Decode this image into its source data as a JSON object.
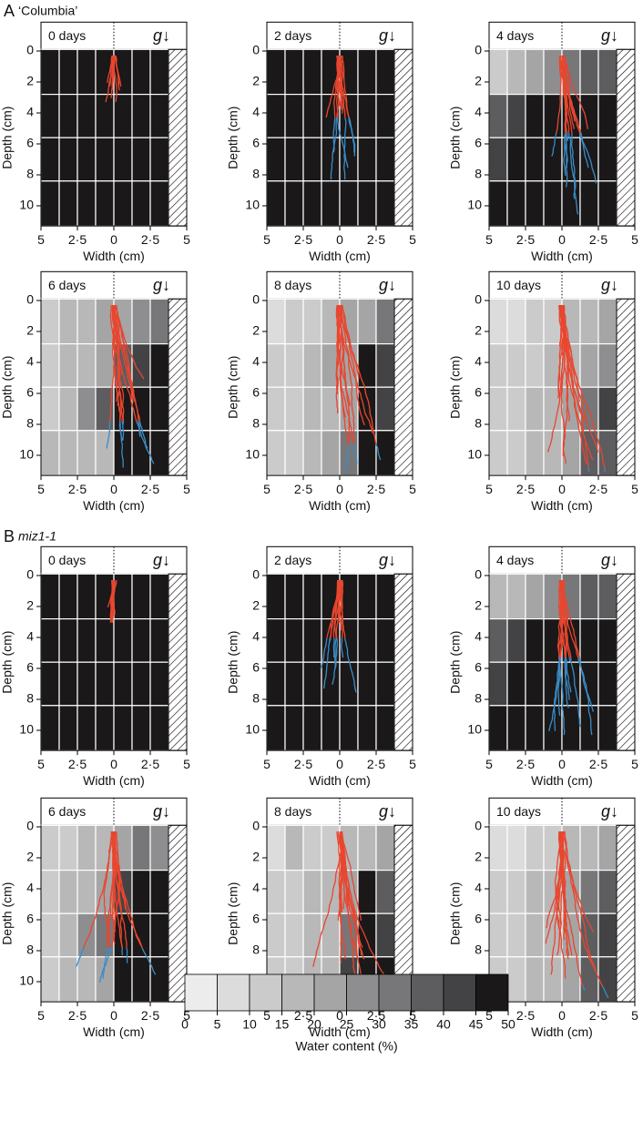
{
  "figure": {
    "panel_labels": [
      {
        "letter": "A",
        "genotype": "‘Columbia’"
      },
      {
        "letter": "B",
        "genotype": "miz1-1"
      }
    ]
  },
  "shared_axes": {
    "x_label": "Width (cm)",
    "y_label": "Depth (cm)",
    "gravity_label": "g↓",
    "xlim": [
      -5,
      5
    ],
    "ylim": [
      -0.1,
      11.3
    ],
    "xticks": [
      {
        "value": -5,
        "label": "5"
      },
      {
        "value": -2.5,
        "label": "2·5"
      },
      0,
      {
        "value": 2.5,
        "label": "2·5"
      },
      5
    ],
    "yticks": [
      0,
      2,
      4,
      6,
      8,
      10
    ],
    "col_edges": [
      -5,
      -3.75,
      -2.5,
      -1.25,
      0,
      1.25,
      2.5,
      3.75
    ],
    "row_edges": [
      -0.1,
      2.8,
      5.6,
      8.4,
      11.3
    ]
  },
  "colorbar": {
    "label": "Water content (%)",
    "ticks": [
      0,
      5,
      10,
      15,
      20,
      25,
      30,
      35,
      40,
      45,
      50
    ],
    "colors": [
      "#ececec",
      "#dcdcdc",
      "#cbcbcb",
      "#b8b8b9",
      "#a5a5a6",
      "#8e8e90",
      "#77777a",
      "#5d5d60",
      "#434345",
      "#1a1818"
    ]
  },
  "chart_data": [
    {
      "type": "heatmap",
      "title": "0 days",
      "values": [
        [
          48,
          48,
          48,
          48,
          48,
          48,
          48
        ],
        [
          48,
          48,
          48,
          48,
          48,
          48,
          48
        ],
        [
          48,
          48,
          48,
          48,
          48,
          48,
          48
        ],
        [
          48,
          48,
          48,
          48,
          48,
          48,
          48
        ]
      ]
    },
    {
      "type": "heatmap",
      "title": "2 days",
      "values": [
        [
          48,
          48,
          48,
          48,
          48,
          48,
          48
        ],
        [
          48,
          48,
          48,
          48,
          48,
          48,
          48
        ],
        [
          48,
          48,
          48,
          48,
          48,
          48,
          48
        ],
        [
          48,
          48,
          48,
          48,
          48,
          48,
          48
        ]
      ]
    },
    {
      "type": "heatmap",
      "title": "4 days",
      "values": [
        [
          12,
          17,
          22,
          27,
          33,
          37,
          38
        ],
        [
          37,
          43,
          48,
          48,
          48,
          48,
          48
        ],
        [
          42,
          48,
          48,
          48,
          48,
          48,
          48
        ],
        [
          48,
          48,
          48,
          48,
          48,
          48,
          48
        ]
      ]
    },
    {
      "type": "heatmap",
      "title": "6 days",
      "values": [
        [
          14,
          16,
          18,
          20,
          23,
          27,
          32
        ],
        [
          14,
          16,
          18,
          24,
          35,
          43,
          45
        ],
        [
          14,
          16,
          28,
          35,
          48,
          48,
          48
        ],
        [
          15,
          15,
          16,
          18,
          48,
          48,
          48
        ]
      ]
    },
    {
      "type": "heatmap",
      "title": "8 days",
      "values": [
        [
          8,
          12,
          14,
          16,
          20,
          24,
          30
        ],
        [
          12,
          14,
          16,
          20,
          24,
          48,
          40
        ],
        [
          12,
          14,
          16,
          18,
          22,
          48,
          44
        ],
        [
          12,
          14,
          16,
          20,
          34,
          48,
          48
        ]
      ]
    },
    {
      "type": "heatmap",
      "title": "10 days",
      "values": [
        [
          6,
          8,
          12,
          14,
          16,
          18,
          22
        ],
        [
          10,
          12,
          14,
          16,
          18,
          22,
          27
        ],
        [
          12,
          14,
          16,
          18,
          22,
          32,
          40
        ],
        [
          12,
          14,
          16,
          18,
          20,
          36,
          38
        ]
      ]
    },
    {
      "type": "heatmap",
      "title": "0 days",
      "values": [
        [
          48,
          48,
          48,
          48,
          48,
          48,
          48
        ],
        [
          48,
          48,
          48,
          48,
          48,
          48,
          48
        ],
        [
          48,
          48,
          48,
          48,
          48,
          48,
          48
        ],
        [
          48,
          48,
          48,
          48,
          48,
          48,
          48
        ]
      ]
    },
    {
      "type": "heatmap",
      "title": "2 days",
      "values": [
        [
          48,
          48,
          48,
          48,
          48,
          48,
          48
        ],
        [
          48,
          48,
          48,
          48,
          48,
          48,
          48
        ],
        [
          48,
          48,
          48,
          48,
          48,
          48,
          48
        ],
        [
          48,
          48,
          48,
          48,
          48,
          48,
          48
        ]
      ]
    },
    {
      "type": "heatmap",
      "title": "4 days",
      "values": [
        [
          16,
          18,
          22,
          27,
          33,
          36,
          38
        ],
        [
          38,
          44,
          48,
          48,
          48,
          48,
          48
        ],
        [
          40,
          48,
          48,
          48,
          48,
          48,
          48
        ],
        [
          48,
          48,
          48,
          48,
          48,
          48,
          48
        ]
      ]
    },
    {
      "type": "heatmap",
      "title": "6 days",
      "values": [
        [
          12,
          14,
          16,
          18,
          22,
          30,
          26
        ],
        [
          14,
          16,
          18,
          22,
          44,
          45,
          45
        ],
        [
          14,
          16,
          28,
          30,
          48,
          48,
          48
        ],
        [
          14,
          16,
          18,
          20,
          48,
          48,
          48
        ]
      ]
    },
    {
      "type": "heatmap",
      "title": "8 days",
      "values": [
        [
          6,
          16,
          14,
          14,
          16,
          18,
          20
        ],
        [
          12,
          14,
          16,
          18,
          24,
          48,
          38
        ],
        [
          12,
          14,
          16,
          18,
          30,
          48,
          42
        ],
        [
          12,
          14,
          16,
          18,
          40,
          48,
          48
        ]
      ]
    },
    {
      "type": "heatmap",
      "title": "10 days",
      "values": [
        [
          6,
          8,
          12,
          14,
          16,
          18,
          22
        ],
        [
          12,
          14,
          16,
          18,
          22,
          30,
          38
        ],
        [
          12,
          14,
          16,
          18,
          24,
          36,
          42
        ],
        [
          12,
          14,
          16,
          18,
          22,
          36,
          40
        ]
      ]
    }
  ]
}
